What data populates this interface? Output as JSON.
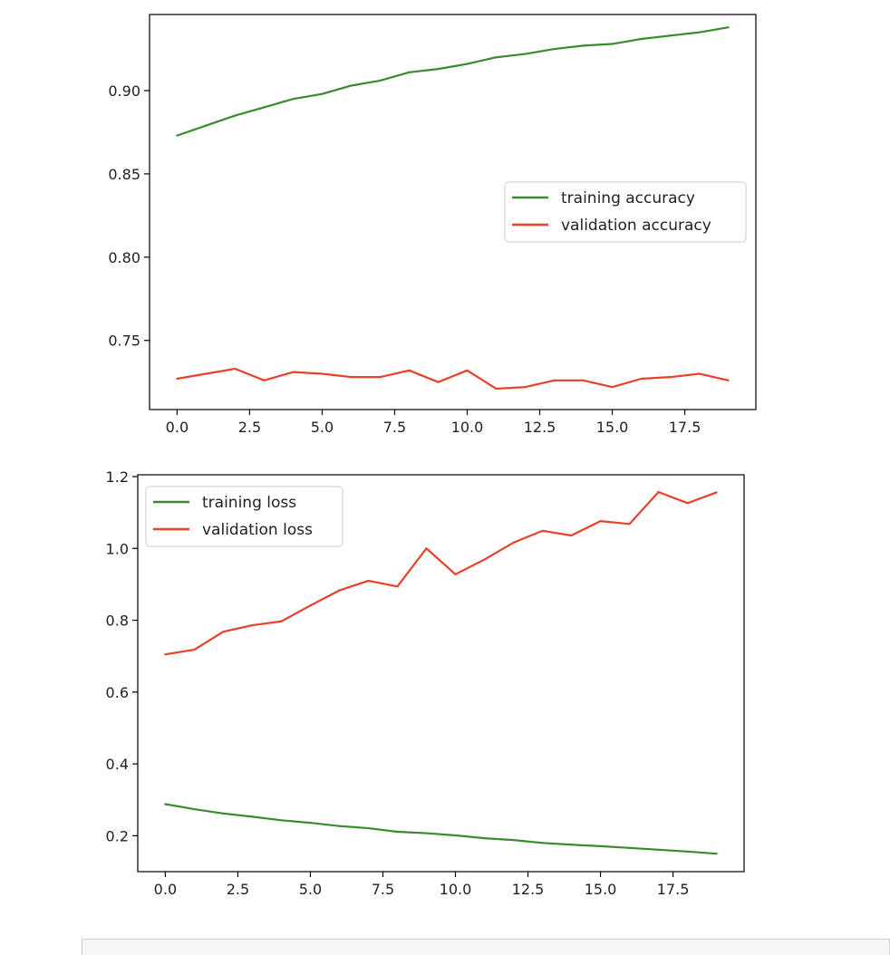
{
  "chart_data": [
    {
      "type": "line",
      "title": "",
      "xlabel": "",
      "ylabel": "",
      "x": [
        0,
        1,
        2,
        3,
        4,
        5,
        6,
        7,
        8,
        9,
        10,
        11,
        12,
        13,
        14,
        15,
        16,
        17,
        18,
        19
      ],
      "xlim": [
        -0.95,
        19.95
      ],
      "ylim": [
        0.7085,
        0.9457
      ],
      "xticks": [
        0.0,
        2.5,
        5.0,
        7.5,
        10.0,
        12.5,
        15.0,
        17.5
      ],
      "xtick_labels": [
        "0.0",
        "2.5",
        "5.0",
        "7.5",
        "10.0",
        "12.5",
        "15.0",
        "17.5"
      ],
      "yticks": [
        0.75,
        0.8,
        0.85,
        0.9
      ],
      "ytick_labels": [
        "0.75",
        "0.80",
        "0.85",
        "0.90"
      ],
      "grid": false,
      "legend_position": "center-right",
      "series": [
        {
          "name": "training accuracy",
          "color": "#3a8a2e",
          "values": [
            0.873,
            0.879,
            0.885,
            0.89,
            0.895,
            0.898,
            0.903,
            0.906,
            0.911,
            0.913,
            0.916,
            0.92,
            0.922,
            0.925,
            0.927,
            0.928,
            0.931,
            0.933,
            0.935,
            0.938
          ]
        },
        {
          "name": "validation accuracy",
          "color": "#e8402a",
          "values": [
            0.727,
            0.73,
            0.733,
            0.726,
            0.731,
            0.73,
            0.728,
            0.728,
            0.732,
            0.725,
            0.732,
            0.721,
            0.722,
            0.726,
            0.726,
            0.722,
            0.727,
            0.728,
            0.73,
            0.726
          ]
        }
      ]
    },
    {
      "type": "line",
      "title": "",
      "xlabel": "",
      "ylabel": "",
      "x": [
        0,
        1,
        2,
        3,
        4,
        5,
        6,
        7,
        8,
        9,
        10,
        11,
        12,
        13,
        14,
        15,
        16,
        17,
        18,
        19
      ],
      "xlim": [
        -0.95,
        19.95
      ],
      "ylim": [
        0.1,
        1.205
      ],
      "xticks": [
        0.0,
        2.5,
        5.0,
        7.5,
        10.0,
        12.5,
        15.0,
        17.5
      ],
      "xtick_labels": [
        "0.0",
        "2.5",
        "5.0",
        "7.5",
        "10.0",
        "12.5",
        "15.0",
        "17.5"
      ],
      "yticks": [
        0.2,
        0.4,
        0.6,
        0.8,
        1.0,
        1.2
      ],
      "ytick_labels": [
        "0.2",
        "0.4",
        "0.6",
        "0.8",
        "1.0",
        "1.2"
      ],
      "grid": false,
      "legend_position": "top-left",
      "series": [
        {
          "name": "training loss",
          "color": "#3a8a2e",
          "values": [
            0.288,
            0.274,
            0.262,
            0.253,
            0.243,
            0.236,
            0.227,
            0.221,
            0.211,
            0.207,
            0.201,
            0.193,
            0.188,
            0.18,
            0.175,
            0.171,
            0.166,
            0.161,
            0.156,
            0.15
          ]
        },
        {
          "name": "validation loss",
          "color": "#e8402a",
          "values": [
            0.705,
            0.718,
            0.768,
            0.786,
            0.797,
            0.841,
            0.883,
            0.91,
            0.894,
            1.0,
            0.928,
            0.969,
            1.016,
            1.049,
            1.036,
            1.076,
            1.068,
            1.157,
            1.126,
            1.156
          ]
        }
      ]
    }
  ]
}
